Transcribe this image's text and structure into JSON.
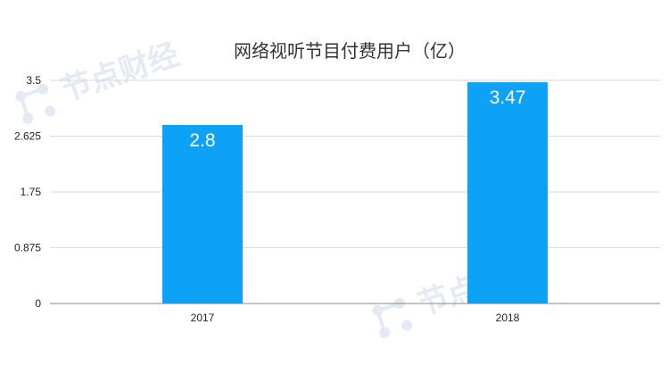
{
  "chart_data": {
    "type": "bar",
    "title": "网络视听节目付费用户（亿）",
    "categories": [
      "2017",
      "2018"
    ],
    "values": [
      2.8,
      3.47
    ],
    "data_labels": [
      "2.8",
      "3.47"
    ],
    "ylim": [
      0,
      3.5
    ],
    "yticks": [
      0,
      0.875,
      1.75,
      2.625,
      3.5
    ],
    "ytick_labels": [
      "0",
      "0.875",
      "1.75",
      "2.625",
      "3.5"
    ],
    "grid": true,
    "legend": "none",
    "bar_color": "#0da2f5"
  },
  "watermark": {
    "text": "节点财经"
  }
}
